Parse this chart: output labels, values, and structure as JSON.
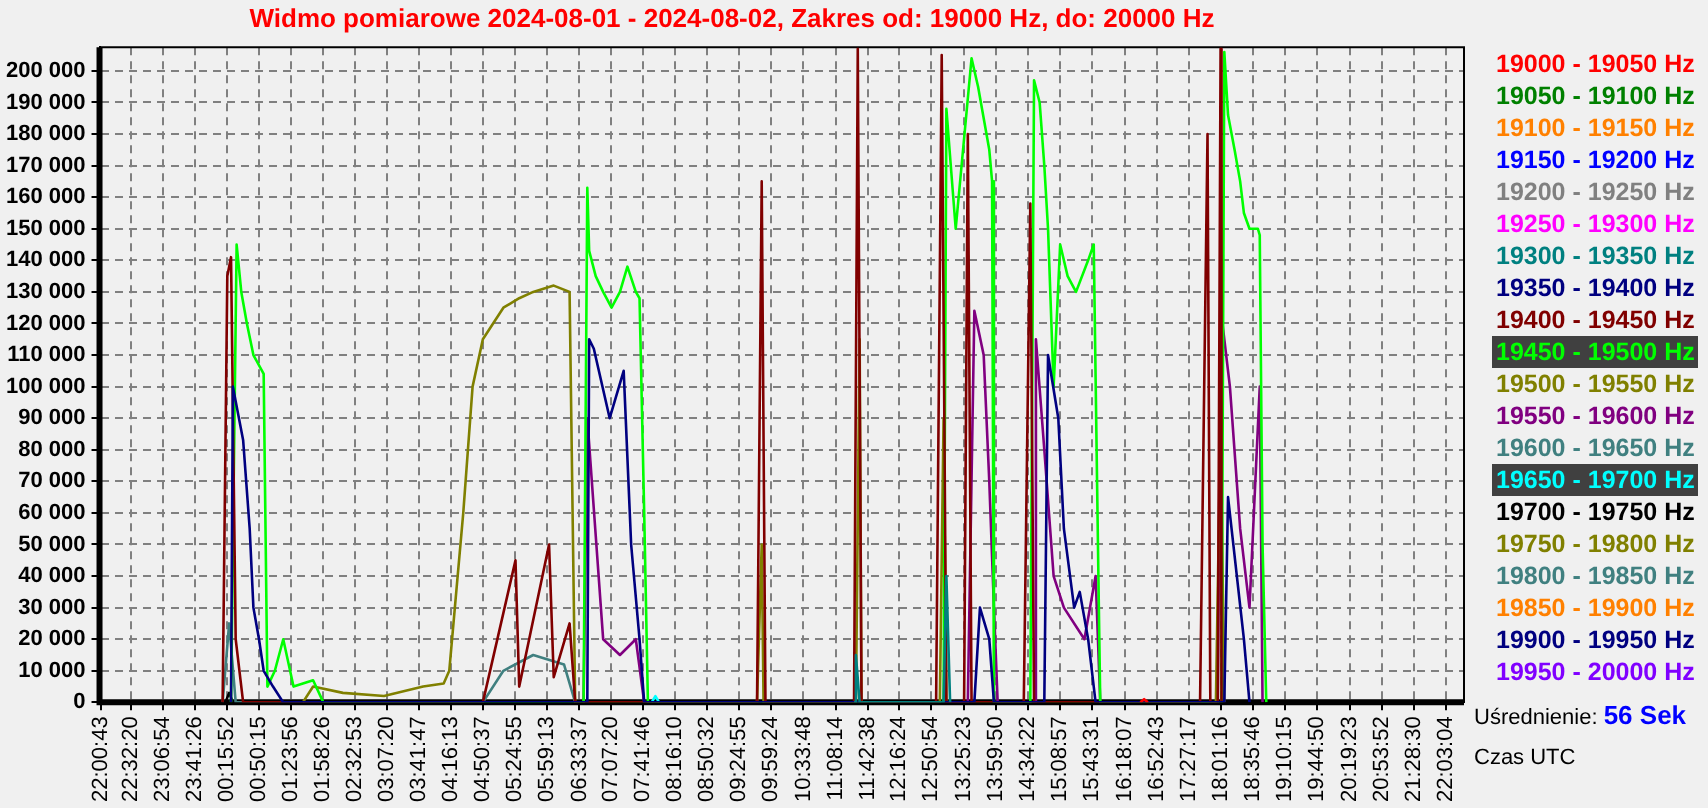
{
  "chart_data": {
    "type": "line",
    "title": "Widmo pomiarowe 2024-08-01 - 2024-08-02, Zakres od: 19000 Hz, do: 20000 Hz",
    "xlim": [
      "2024-08-01T21:59",
      "2024-08-02T22:22"
    ],
    "ylim": [
      0,
      207500
    ],
    "xticks": [
      {
        "value": "2024-08-01T22:00:43",
        "label": "22:00:43"
      },
      {
        "value": "2024-08-01T22:32:20",
        "label": "22:32:20"
      },
      {
        "value": "2024-08-01T23:06:54",
        "label": "23:06:54"
      },
      {
        "value": "2024-08-01T23:41:26",
        "label": "23:41:26"
      },
      {
        "value": "2024-08-02T00:15:52",
        "label": "00:15:52"
      },
      {
        "value": "2024-08-02T00:50:15",
        "label": "00:50:15"
      },
      {
        "value": "2024-08-02T01:23:56",
        "label": "01:23:56"
      },
      {
        "value": "2024-08-02T01:58:26",
        "label": "01:58:26"
      },
      {
        "value": "2024-08-02T02:32:53",
        "label": "02:32:53"
      },
      {
        "value": "2024-08-02T03:07:20",
        "label": "03:07:20"
      },
      {
        "value": "2024-08-02T03:41:47",
        "label": "03:41:47"
      },
      {
        "value": "2024-08-02T04:16:13",
        "label": "04:16:13"
      },
      {
        "value": "2024-08-02T04:50:37",
        "label": "04:50:37"
      },
      {
        "value": "2024-08-02T05:24:55",
        "label": "05:24:55"
      },
      {
        "value": "2024-08-02T05:59:13",
        "label": "05:59:13"
      },
      {
        "value": "2024-08-02T06:33:37",
        "label": "06:33:37"
      },
      {
        "value": "2024-08-02T07:07:20",
        "label": "07:07:20"
      },
      {
        "value": "2024-08-02T07:41:46",
        "label": "07:41:46"
      },
      {
        "value": "2024-08-02T08:16:10",
        "label": "08:16:10"
      },
      {
        "value": "2024-08-02T08:50:32",
        "label": "08:50:32"
      },
      {
        "value": "2024-08-02T09:24:55",
        "label": "09:24:55"
      },
      {
        "value": "2024-08-02T09:59:24",
        "label": "09:59:24"
      },
      {
        "value": "2024-08-02T10:33:48",
        "label": "10:33:48"
      },
      {
        "value": "2024-08-02T11:08:14",
        "label": "11:08:14"
      },
      {
        "value": "2024-08-02T11:42:38",
        "label": "11:42:38"
      },
      {
        "value": "2024-08-02T12:16:24",
        "label": "12:16:24"
      },
      {
        "value": "2024-08-02T12:50:54",
        "label": "12:50:54"
      },
      {
        "value": "2024-08-02T13:25:23",
        "label": "13:25:23"
      },
      {
        "value": "2024-08-02T13:59:50",
        "label": "13:59:50"
      },
      {
        "value": "2024-08-02T14:34:22",
        "label": "14:34:22"
      },
      {
        "value": "2024-08-02T15:08:57",
        "label": "15:08:57"
      },
      {
        "value": "2024-08-02T15:43:31",
        "label": "15:43:31"
      },
      {
        "value": "2024-08-02T16:18:07",
        "label": "16:18:07"
      },
      {
        "value": "2024-08-02T16:52:43",
        "label": "16:52:43"
      },
      {
        "value": "2024-08-02T17:27:17",
        "label": "17:27:17"
      },
      {
        "value": "2024-08-02T18:01:16",
        "label": "18:01:16"
      },
      {
        "value": "2024-08-02T18:35:46",
        "label": "18:35:46"
      },
      {
        "value": "2024-08-02T19:10:15",
        "label": "19:10:15"
      },
      {
        "value": "2024-08-02T19:44:50",
        "label": "19:44:50"
      },
      {
        "value": "2024-08-02T20:19:23",
        "label": "20:19:23"
      },
      {
        "value": "2024-08-02T20:53:52",
        "label": "20:53:52"
      },
      {
        "value": "2024-08-02T21:28:30",
        "label": "21:28:30"
      },
      {
        "value": "2024-08-02T22:03:04",
        "label": "22:03:04"
      }
    ],
    "yticks": [
      {
        "value": 0,
        "label": "0"
      },
      {
        "value": 10000,
        "label": "10 000"
      },
      {
        "value": 20000,
        "label": "20 000"
      },
      {
        "value": 30000,
        "label": "30 000"
      },
      {
        "value": 40000,
        "label": "40 000"
      },
      {
        "value": 50000,
        "label": "50 000"
      },
      {
        "value": 60000,
        "label": "60 000"
      },
      {
        "value": 70000,
        "label": "70 000"
      },
      {
        "value": 80000,
        "label": "80 000"
      },
      {
        "value": 90000,
        "label": "90 000"
      },
      {
        "value": 100000,
        "label": "100 000"
      },
      {
        "value": 110000,
        "label": "110 000"
      },
      {
        "value": 120000,
        "label": "120 000"
      },
      {
        "value": 130000,
        "label": "130 000"
      },
      {
        "value": 140000,
        "label": "140 000"
      },
      {
        "value": 150000,
        "label": "150 000"
      },
      {
        "value": 160000,
        "label": "160 000"
      },
      {
        "value": 170000,
        "label": "170 000"
      },
      {
        "value": 180000,
        "label": "180 000"
      },
      {
        "value": 190000,
        "label": "190 000"
      },
      {
        "value": 200000,
        "label": "200 000"
      }
    ],
    "grid": true,
    "legend": "right",
    "annotations": [
      "Uśrednienie: 56 Sek",
      "Czas UTC"
    ],
    "series": [
      {
        "name": "19000 - 19050 Hz",
        "color": "#ff0000",
        "x": [
          "2024-08-02T16:35",
          "2024-08-02T16:39",
          "2024-08-02T16:43"
        ],
        "values": [
          0,
          1000,
          0
        ]
      },
      {
        "name": "19050 - 19100 Hz",
        "color": "#008000"
      },
      {
        "name": "19100 - 19150 Hz",
        "color": "#ff8000"
      },
      {
        "name": "19150 - 19200 Hz",
        "color": "#0000ff"
      },
      {
        "name": "19200 - 19250 Hz",
        "color": "#808080"
      },
      {
        "name": "19250 - 19300 Hz",
        "color": "#ff00ff"
      },
      {
        "name": "19300 - 19350 Hz",
        "color": "#008080",
        "x": [
          "2024-08-02T11:28",
          "2024-08-02T11:30",
          "2024-08-02T11:34",
          "2024-08-02T13:04",
          "2024-08-02T13:07",
          "2024-08-02T13:11"
        ],
        "values": [
          0,
          15000,
          0,
          0,
          40000,
          0
        ]
      },
      {
        "name": "19350 - 19400 Hz",
        "color": "#000080",
        "x": [
          "2024-08-02T00:20",
          "2024-08-02T00:22",
          "2024-08-02T00:33",
          "2024-08-02T00:40",
          "2024-08-02T00:44",
          "2024-08-02T00:50",
          "2024-08-02T00:55",
          "2024-08-02T01:05",
          "2024-08-02T01:16",
          "2024-08-02T06:42",
          "2024-08-02T06:44",
          "2024-08-02T06:49",
          "2024-08-02T07:06",
          "2024-08-02T07:21",
          "2024-08-02T07:29",
          "2024-08-02T07:38",
          "2024-08-02T07:43",
          "2024-08-02T13:37",
          "2024-08-02T13:43",
          "2024-08-02T13:53",
          "2024-08-02T13:58",
          "2024-08-02T14:52",
          "2024-08-02T14:56",
          "2024-08-02T15:07",
          "2024-08-02T15:13",
          "2024-08-02T15:24",
          "2024-08-02T15:30",
          "2024-08-02T15:39",
          "2024-08-02T15:47",
          "2024-08-02T18:05",
          "2024-08-02T18:09",
          "2024-08-02T18:26",
          "2024-08-02T18:32"
        ],
        "values": [
          0,
          100000,
          83000,
          55000,
          30000,
          20000,
          10000,
          5000,
          0,
          0,
          115000,
          112000,
          90000,
          105000,
          50000,
          20000,
          0,
          0,
          30000,
          20000,
          0,
          0,
          110000,
          90000,
          55000,
          30000,
          35000,
          20000,
          0,
          0,
          65000,
          20000,
          0
        ]
      },
      {
        "name": "19400 - 19450 Hz",
        "color": "#800000",
        "x": [
          "2024-08-02T00:11",
          "2024-08-02T00:16",
          "2024-08-02T00:20",
          "2024-08-02T00:25",
          "2024-08-02T00:33",
          "2024-08-02T04:50",
          "2024-08-02T05:25",
          "2024-08-02T05:29",
          "2024-08-02T06:01",
          "2024-08-02T06:06",
          "2024-08-02T06:23",
          "2024-08-02T06:29",
          "2024-08-02T09:44",
          "2024-08-02T09:49",
          "2024-08-02T09:53",
          "2024-08-02T11:28",
          "2024-08-02T11:32",
          "2024-08-02T11:36",
          "2024-08-02T12:56",
          "2024-08-02T13:02",
          "2024-08-02T13:07",
          "2024-08-02T13:26",
          "2024-08-02T13:30",
          "2024-08-02T13:34",
          "2024-08-02T14:30",
          "2024-08-02T14:37",
          "2024-08-02T14:41",
          "2024-08-02T17:39",
          "2024-08-02T17:47",
          "2024-08-02T17:50",
          "2024-08-02T17:58",
          "2024-08-02T18:01",
          "2024-08-02T18:02"
        ],
        "values": [
          0,
          135000,
          141000,
          20000,
          0,
          0,
          45000,
          5000,
          50000,
          8000,
          25000,
          0,
          0,
          165000,
          0,
          0,
          207000,
          0,
          0,
          205000,
          0,
          0,
          180000,
          0,
          0,
          158000,
          0,
          0,
          180000,
          0,
          0,
          207000,
          0
        ]
      },
      {
        "name": "19450 - 19500 Hz",
        "color": "#00ff00",
        "x": [
          "2024-08-02T00:20",
          "2024-08-02T00:26",
          "2024-08-02T00:31",
          "2024-08-02T00:37",
          "2024-08-02T00:44",
          "2024-08-02T00:55",
          "2024-08-02T00:59",
          "2024-08-02T01:07",
          "2024-08-02T01:16",
          "2024-08-02T01:27",
          "2024-08-02T01:48",
          "2024-08-02T01:59",
          "2024-08-02T06:38",
          "2024-08-02T06:42",
          "2024-08-02T06:44",
          "2024-08-02T06:51",
          "2024-08-02T06:59",
          "2024-08-02T07:08",
          "2024-08-02T07:17",
          "2024-08-02T07:25",
          "2024-08-02T07:34",
          "2024-08-02T07:38",
          "2024-08-02T07:43",
          "2024-08-02T07:47",
          "2024-08-02T13:04",
          "2024-08-02T13:07",
          "2024-08-02T13:17",
          "2024-08-02T13:34",
          "2024-08-02T13:41",
          "2024-08-02T13:47",
          "2024-08-02T13:53",
          "2024-08-02T13:56",
          "2024-08-02T13:58",
          "2024-08-02T14:37",
          "2024-08-02T14:41",
          "2024-08-02T14:47",
          "2024-08-02T14:52",
          "2024-08-02T14:56",
          "2024-08-02T15:02",
          "2024-08-02T15:09",
          "2024-08-02T15:17",
          "2024-08-02T15:26",
          "2024-08-02T15:39",
          "2024-08-02T15:45",
          "2024-08-02T15:50",
          "2024-08-02T15:52",
          "2024-08-02T18:02",
          "2024-08-02T18:05",
          "2024-08-02T18:09",
          "2024-08-02T18:16",
          "2024-08-02T18:22",
          "2024-08-02T18:26",
          "2024-08-02T18:32",
          "2024-08-02T18:41",
          "2024-08-02T18:43",
          "2024-08-02T18:46",
          "2024-08-02T18:50"
        ],
        "values": [
          0,
          145000,
          130000,
          120000,
          110000,
          104000,
          5000,
          10000,
          20000,
          5000,
          7000,
          0,
          0,
          163000,
          143000,
          135000,
          130000,
          125000,
          130000,
          138000,
          130000,
          128000,
          60000,
          0,
          0,
          188000,
          150000,
          204000,
          195000,
          185000,
          175000,
          165000,
          0,
          0,
          197000,
          190000,
          170000,
          150000,
          100000,
          145000,
          135000,
          130000,
          140000,
          145000,
          40000,
          0,
          0,
          206000,
          186000,
          175000,
          165000,
          155000,
          150000,
          150000,
          148000,
          50000,
          0
        ]
      },
      {
        "name": "19500 - 19550 Hz",
        "color": "#808000",
        "x": [
          "2024-08-02T01:37",
          "2024-08-02T01:48",
          "2024-08-02T02:20",
          "2024-08-02T03:04",
          "2024-08-02T03:46",
          "2024-08-02T04:08",
          "2024-08-02T04:14",
          "2024-08-02T04:20",
          "2024-08-02T04:29",
          "2024-08-02T04:39",
          "2024-08-02T04:50",
          "2024-08-02T05:01",
          "2024-08-02T05:12",
          "2024-08-02T05:29",
          "2024-08-02T05:44",
          "2024-08-02T06:06",
          "2024-08-02T06:23",
          "2024-08-02T06:29",
          "2024-08-02T09:44",
          "2024-08-02T09:49",
          "2024-08-02T09:51",
          "2024-08-02T11:30",
          "2024-08-02T11:34",
          "2024-08-02T11:36",
          "2024-08-02T13:00",
          "2024-08-02T13:04",
          "2024-08-02T13:07",
          "2024-08-02T17:56",
          "2024-08-02T18:01",
          "2024-08-02T18:05"
        ],
        "values": [
          0,
          5000,
          3000,
          2000,
          5000,
          6000,
          10000,
          30000,
          60000,
          100000,
          115000,
          120000,
          125000,
          128000,
          130000,
          132000,
          130000,
          0,
          0,
          50000,
          0,
          0,
          115000,
          0,
          0,
          90000,
          0,
          0,
          89000,
          0
        ]
      },
      {
        "name": "19550 - 19600 Hz",
        "color": "#800080",
        "x": [
          "2024-08-02T06:38",
          "2024-08-02T06:42",
          "2024-08-02T06:59",
          "2024-08-02T07:17",
          "2024-08-02T07:34",
          "2024-08-02T07:43",
          "2024-08-02T13:30",
          "2024-08-02T13:37",
          "2024-08-02T13:47",
          "2024-08-02T13:53",
          "2024-08-02T13:58",
          "2024-08-02T14:02",
          "2024-08-02T14:41",
          "2024-08-02T14:43",
          "2024-08-02T14:52",
          "2024-08-02T15:02",
          "2024-08-02T15:13",
          "2024-08-02T15:35",
          "2024-08-02T15:47",
          "2024-08-02T15:52",
          "2024-08-02T17:58",
          "2024-08-02T18:01",
          "2024-08-02T18:11",
          "2024-08-02T18:22",
          "2024-08-02T18:32",
          "2024-08-02T18:43",
          "2024-08-02T18:46"
        ],
        "values": [
          0,
          90000,
          20000,
          15000,
          20000,
          0,
          0,
          124000,
          110000,
          70000,
          30000,
          0,
          0,
          115000,
          80000,
          40000,
          30000,
          20000,
          40000,
          0,
          0,
          125000,
          100000,
          55000,
          30000,
          100000,
          0
        ]
      },
      {
        "name": "19600 - 19650 Hz",
        "color": "#408080",
        "x": [
          "2024-08-02T00:11",
          "2024-08-02T00:18",
          "2024-08-02T00:25",
          "2024-08-02T04:50",
          "2024-08-02T05:12",
          "2024-08-02T05:44",
          "2024-08-02T06:17",
          "2024-08-02T06:29"
        ],
        "values": [
          0,
          25000,
          0,
          0,
          10000,
          15000,
          12000,
          0
        ]
      },
      {
        "name": "19650 - 19700 Hz",
        "color": "#00ffff",
        "x": [
          "2024-08-02T07:51",
          "2024-08-02T07:55",
          "2024-08-02T07:59"
        ],
        "values": [
          0,
          2000,
          0
        ]
      },
      {
        "name": "19700 - 19750 Hz",
        "color": "#000000",
        "x": [
          "2024-08-02T00:14",
          "2024-08-02T00:18",
          "2024-08-02T00:22"
        ],
        "values": [
          0,
          3000,
          0
        ]
      },
      {
        "name": "19750 - 19800 Hz",
        "color": "#808000"
      },
      {
        "name": "19800 - 19850 Hz",
        "color": "#408080"
      },
      {
        "name": "19850 - 19900 Hz",
        "color": "#ff8000"
      },
      {
        "name": "19900 - 19950 Hz",
        "color": "#000080"
      },
      {
        "name": "19950 - 20000 Hz",
        "color": "#8000ff"
      }
    ]
  }
}
